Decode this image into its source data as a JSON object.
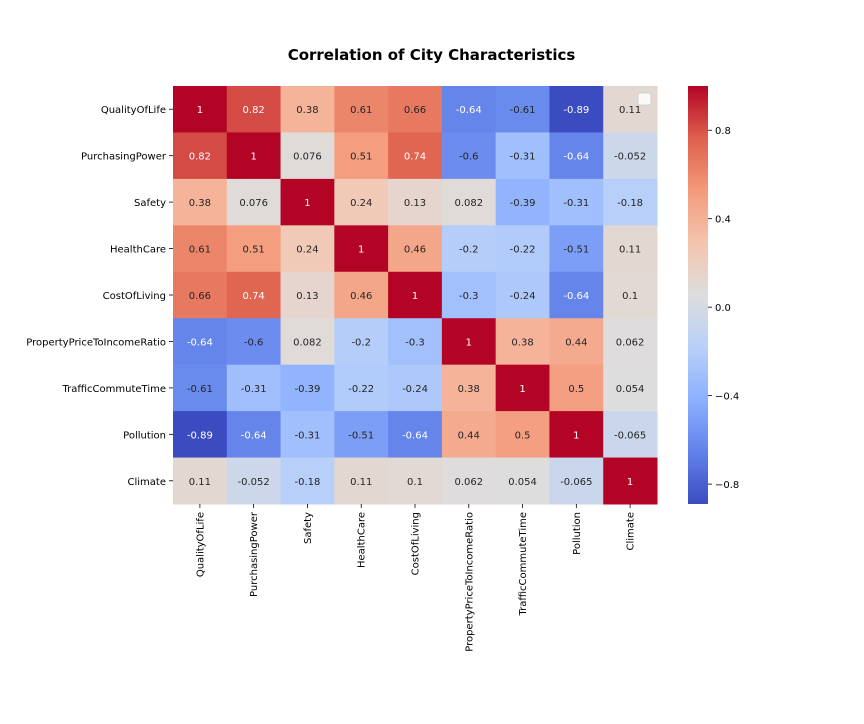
{
  "chart_data": {
    "type": "heatmap",
    "title": "Correlation of City Characteristics",
    "xlabel": "",
    "ylabel": "",
    "rows": [
      "QualityOfLife",
      "PurchasingPower",
      "Safety",
      "HealthCare",
      "CostOfLiving",
      "PropertyPriceToIncomeRatio",
      "TrafficCommuteTime",
      "Pollution",
      "Climate"
    ],
    "columns": [
      "QualityOfLife",
      "PurchasingPower",
      "Safety",
      "HealthCare",
      "CostOfLiving",
      "PropertyPriceToIncomeRatio",
      "TrafficCommuteTime",
      "Pollution",
      "Climate"
    ],
    "values": [
      [
        1,
        0.82,
        0.38,
        0.61,
        0.66,
        -0.64,
        -0.61,
        -0.89,
        0.11
      ],
      [
        0.82,
        1,
        0.076,
        0.51,
        0.74,
        -0.6,
        -0.31,
        -0.64,
        -0.052
      ],
      [
        0.38,
        0.076,
        1,
        0.24,
        0.13,
        0.082,
        -0.39,
        -0.31,
        -0.18
      ],
      [
        0.61,
        0.51,
        0.24,
        1,
        0.46,
        -0.2,
        -0.22,
        -0.51,
        0.11
      ],
      [
        0.66,
        0.74,
        0.13,
        0.46,
        1,
        -0.3,
        -0.24,
        -0.64,
        0.1
      ],
      [
        -0.64,
        -0.6,
        0.082,
        -0.2,
        -0.3,
        1,
        0.38,
        0.44,
        0.062
      ],
      [
        -0.61,
        -0.31,
        -0.39,
        -0.22,
        -0.24,
        0.38,
        1,
        0.5,
        0.054
      ],
      [
        -0.89,
        -0.64,
        -0.31,
        -0.51,
        -0.64,
        0.44,
        0.5,
        1,
        -0.065
      ],
      [
        0.11,
        -0.052,
        -0.18,
        0.11,
        0.1,
        0.062,
        0.054,
        -0.065,
        1
      ]
    ],
    "annotations": true,
    "colormap": "coolwarm",
    "vmin": -0.89,
    "vmax": 1,
    "colorbar_ticks": [
      0.8,
      0.4,
      0.0,
      -0.4,
      -0.8
    ],
    "colorbar_tick_labels": [
      "0.8",
      "0.4",
      "0.0",
      "−0.4",
      "−0.8"
    ],
    "legend": "empty box at top-right"
  }
}
